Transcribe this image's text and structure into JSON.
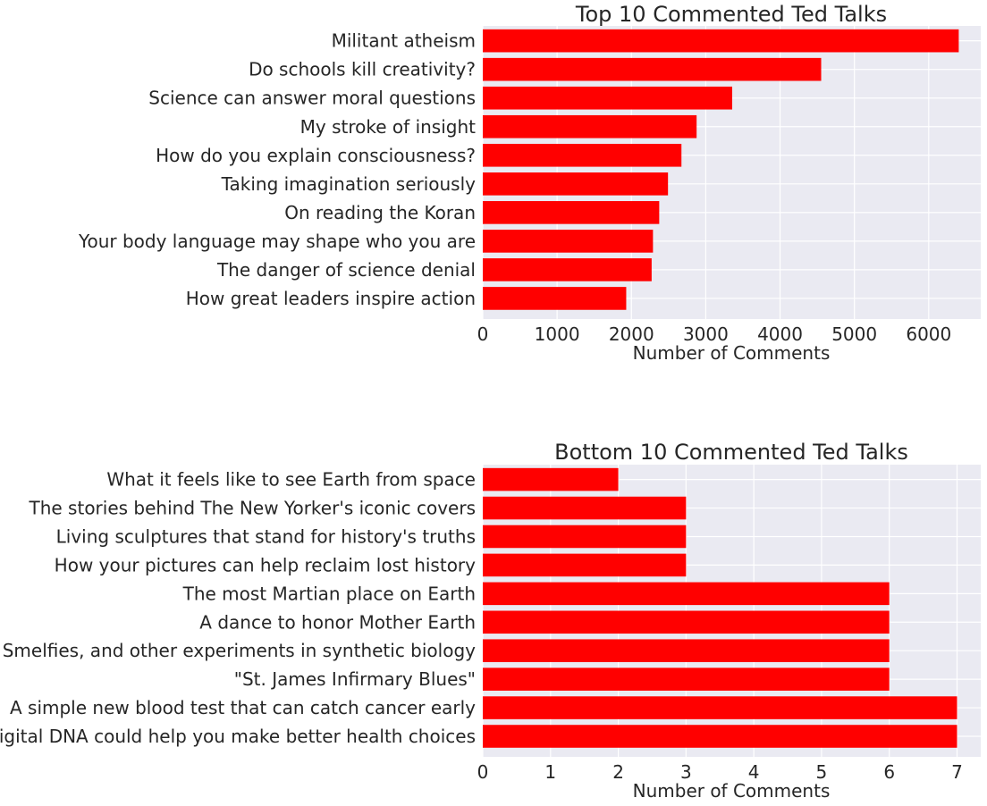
{
  "chart_data": [
    {
      "type": "bar",
      "orientation": "horizontal",
      "title": "Top 10 Commented Ted Talks",
      "xlabel": "Number of Comments",
      "ylabel": "",
      "xlim": [
        0,
        6700
      ],
      "xticks": [
        0,
        1000,
        2000,
        3000,
        4000,
        5000,
        6000
      ],
      "grid": true,
      "bar_color": "#ff0000",
      "background_color": "#eaeaf2",
      "categories": [
        "Militant atheism",
        "Do schools kill creativity?",
        "Science can answer moral questions",
        "My stroke of insight",
        "How do you explain consciousness?",
        "Taking imagination seriously",
        "On reading the Koran",
        "Your body language may shape who you are",
        "The danger of science denial",
        "How great leaders inspire action"
      ],
      "values": [
        6404,
        4553,
        3356,
        2877,
        2673,
        2492,
        2374,
        2290,
        2272,
        1930
      ]
    },
    {
      "type": "bar",
      "orientation": "horizontal",
      "title": "Bottom 10 Commented Ted Talks",
      "xlabel": "Number of Comments",
      "ylabel": "",
      "xlim": [
        0,
        7.35
      ],
      "xticks": [
        0,
        1,
        2,
        3,
        4,
        5,
        6,
        7
      ],
      "grid": true,
      "bar_color": "#ff0000",
      "background_color": "#eaeaf2",
      "categories": [
        "What it feels like to see Earth from space",
        "The stories behind The New Yorker's iconic covers",
        "Living sculptures that stand for history's truths",
        "How your pictures can help reclaim lost history",
        "The most Martian place on Earth",
        "A dance to honor Mother Earth",
        "Smelfies, and other experiments in synthetic biology",
        "\"St. James Infirmary Blues\"",
        "A simple new blood test that can catch cancer early",
        "How digital DNA could help you make better health choices"
      ],
      "values": [
        2,
        3,
        3,
        3,
        6,
        6,
        6,
        6,
        7,
        7
      ]
    }
  ]
}
